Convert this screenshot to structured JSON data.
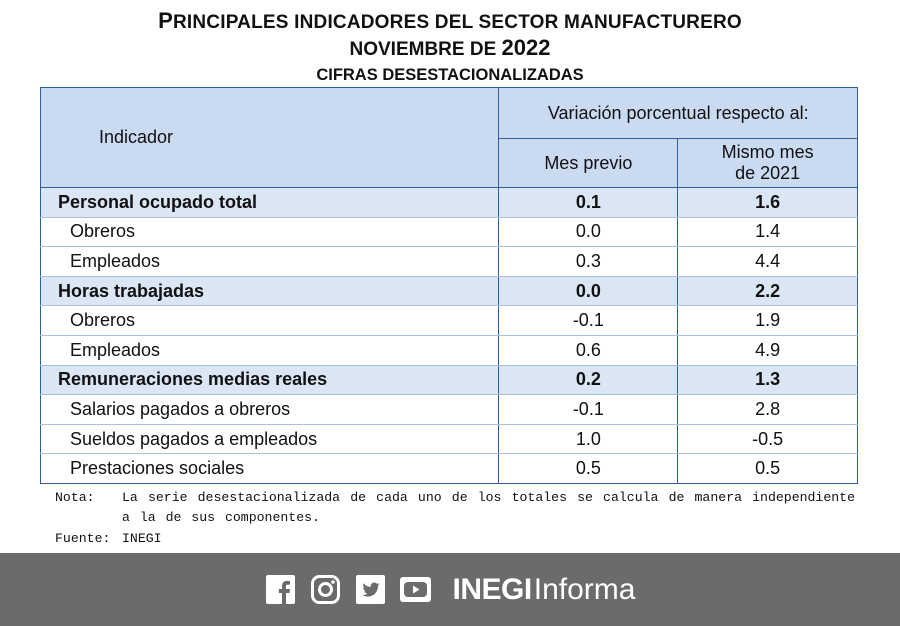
{
  "header": {
    "title_line1_lead": "P",
    "title_line1_rest": "RINCIPALES INDICADORES DEL SECTOR MANUFACTURERO",
    "title_line2_lead": "NOVIEMBRE DE ",
    "title_line2_year": "2022",
    "title_line3": "CIFRAS DESESTACIONALIZADAS"
  },
  "table": {
    "col_indicator": "Indicador",
    "col_group": "Variación porcentual respecto al:",
    "col_prev": "Mes previo",
    "col_same_line1": "Mismo mes",
    "col_same_line2": "de 2021",
    "rows": [
      {
        "label": "Personal ocupado total",
        "prev": "0.1",
        "same": "1.6"
      },
      {
        "label": "Obreros",
        "prev": "0.0",
        "same": "1.4"
      },
      {
        "label": "Empleados",
        "prev": "0.3",
        "same": "4.4"
      },
      {
        "label": "Horas trabajadas",
        "prev": "0.0",
        "same": "2.2"
      },
      {
        "label": "Obreros",
        "prev": "-0.1",
        "same": "1.9"
      },
      {
        "label": "Empleados",
        "prev": "0.6",
        "same": "4.9"
      },
      {
        "label": "Remuneraciones medias reales",
        "prev": "0.2",
        "same": "1.3"
      },
      {
        "label": "Salarios pagados a obreros",
        "prev": "-0.1",
        "same": "2.8"
      },
      {
        "label": "Sueldos pagados a empleados",
        "prev": "1.0",
        "same": "-0.5"
      },
      {
        "label": "Prestaciones sociales",
        "prev": "0.5",
        "same": "0.5"
      }
    ]
  },
  "notes": {
    "note_key": "Nota:",
    "note_text": "La serie desestacionalizada de cada uno de los totales se calcula de manera independiente a la de sus componentes.",
    "source_key": "Fuente:",
    "source_text": "INEGI"
  },
  "footer": {
    "icons": [
      "facebook-icon",
      "instagram-icon",
      "twitter-icon",
      "youtube-icon"
    ],
    "brand_bold": "INEGI",
    "brand_light": "Informa",
    "bg_color": "#6b6b6b"
  }
}
